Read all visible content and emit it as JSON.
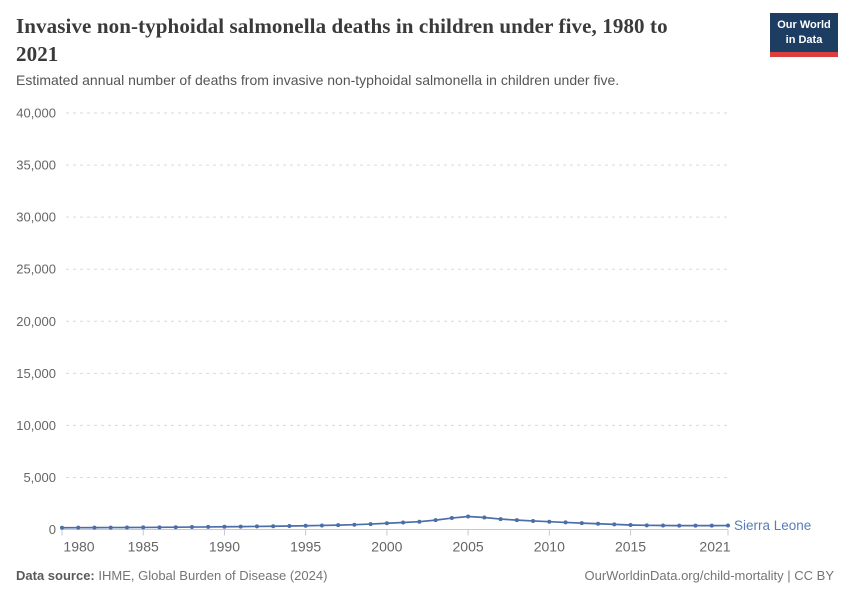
{
  "header": {
    "title": "Invasive non-typhoidal salmonella deaths in children under five, 1980 to 2021",
    "subtitle": "Estimated annual number of deaths from invasive non-typhoidal salmonella in children under five.",
    "logo": {
      "line1": "Our World",
      "line2": "in Data",
      "bg_color": "#1d3d63",
      "accent_color": "#dc3e3e"
    }
  },
  "chart_data": {
    "type": "line",
    "title": "Invasive non-typhoidal salmonella deaths in children under five, 1980 to 2021",
    "xlabel": "",
    "ylabel": "",
    "xlim": [
      1980,
      2021
    ],
    "ylim": [
      0,
      40000
    ],
    "grid": "horizontal-dashed",
    "legend": "end-of-line-label",
    "yticks": [
      0,
      5000,
      10000,
      15000,
      20000,
      25000,
      30000,
      35000,
      40000
    ],
    "ytick_labels": [
      "0",
      "5,000",
      "10,000",
      "15,000",
      "20,000",
      "25,000",
      "30,000",
      "35,000",
      "40,000"
    ],
    "xticks": [
      1980,
      1985,
      1990,
      1995,
      2000,
      2005,
      2010,
      2015,
      2021
    ],
    "xtick_labels": [
      "1980",
      "1985",
      "1990",
      "1995",
      "2000",
      "2005",
      "2010",
      "2015",
      "2021"
    ],
    "x": [
      1980,
      1981,
      1982,
      1983,
      1984,
      1985,
      1986,
      1987,
      1988,
      1989,
      1990,
      1991,
      1992,
      1993,
      1994,
      1995,
      1996,
      1997,
      1998,
      1999,
      2000,
      2001,
      2002,
      2003,
      2004,
      2005,
      2006,
      2007,
      2008,
      2009,
      2010,
      2011,
      2012,
      2013,
      2014,
      2015,
      2016,
      2017,
      2018,
      2019,
      2020,
      2021
    ],
    "series": [
      {
        "name": "Sierra Leone",
        "color": "#4C6EA8",
        "label_color": "#577EB4",
        "values": [
          170,
          175,
          180,
          185,
          192,
          200,
          210,
          222,
          235,
          248,
          262,
          278,
          295,
          315,
          335,
          360,
          390,
          420,
          460,
          520,
          600,
          670,
          750,
          900,
          1100,
          1250,
          1150,
          1000,
          900,
          820,
          750,
          680,
          610,
          550,
          490,
          430,
          400,
          385,
          375,
          370,
          370,
          380
        ]
      }
    ]
  },
  "footer": {
    "datasource_label": "Data source:",
    "datasource_value": "IHME, Global Burden of Disease (2024)",
    "rights": "OurWorldinData.org/child-mortality | CC BY"
  }
}
